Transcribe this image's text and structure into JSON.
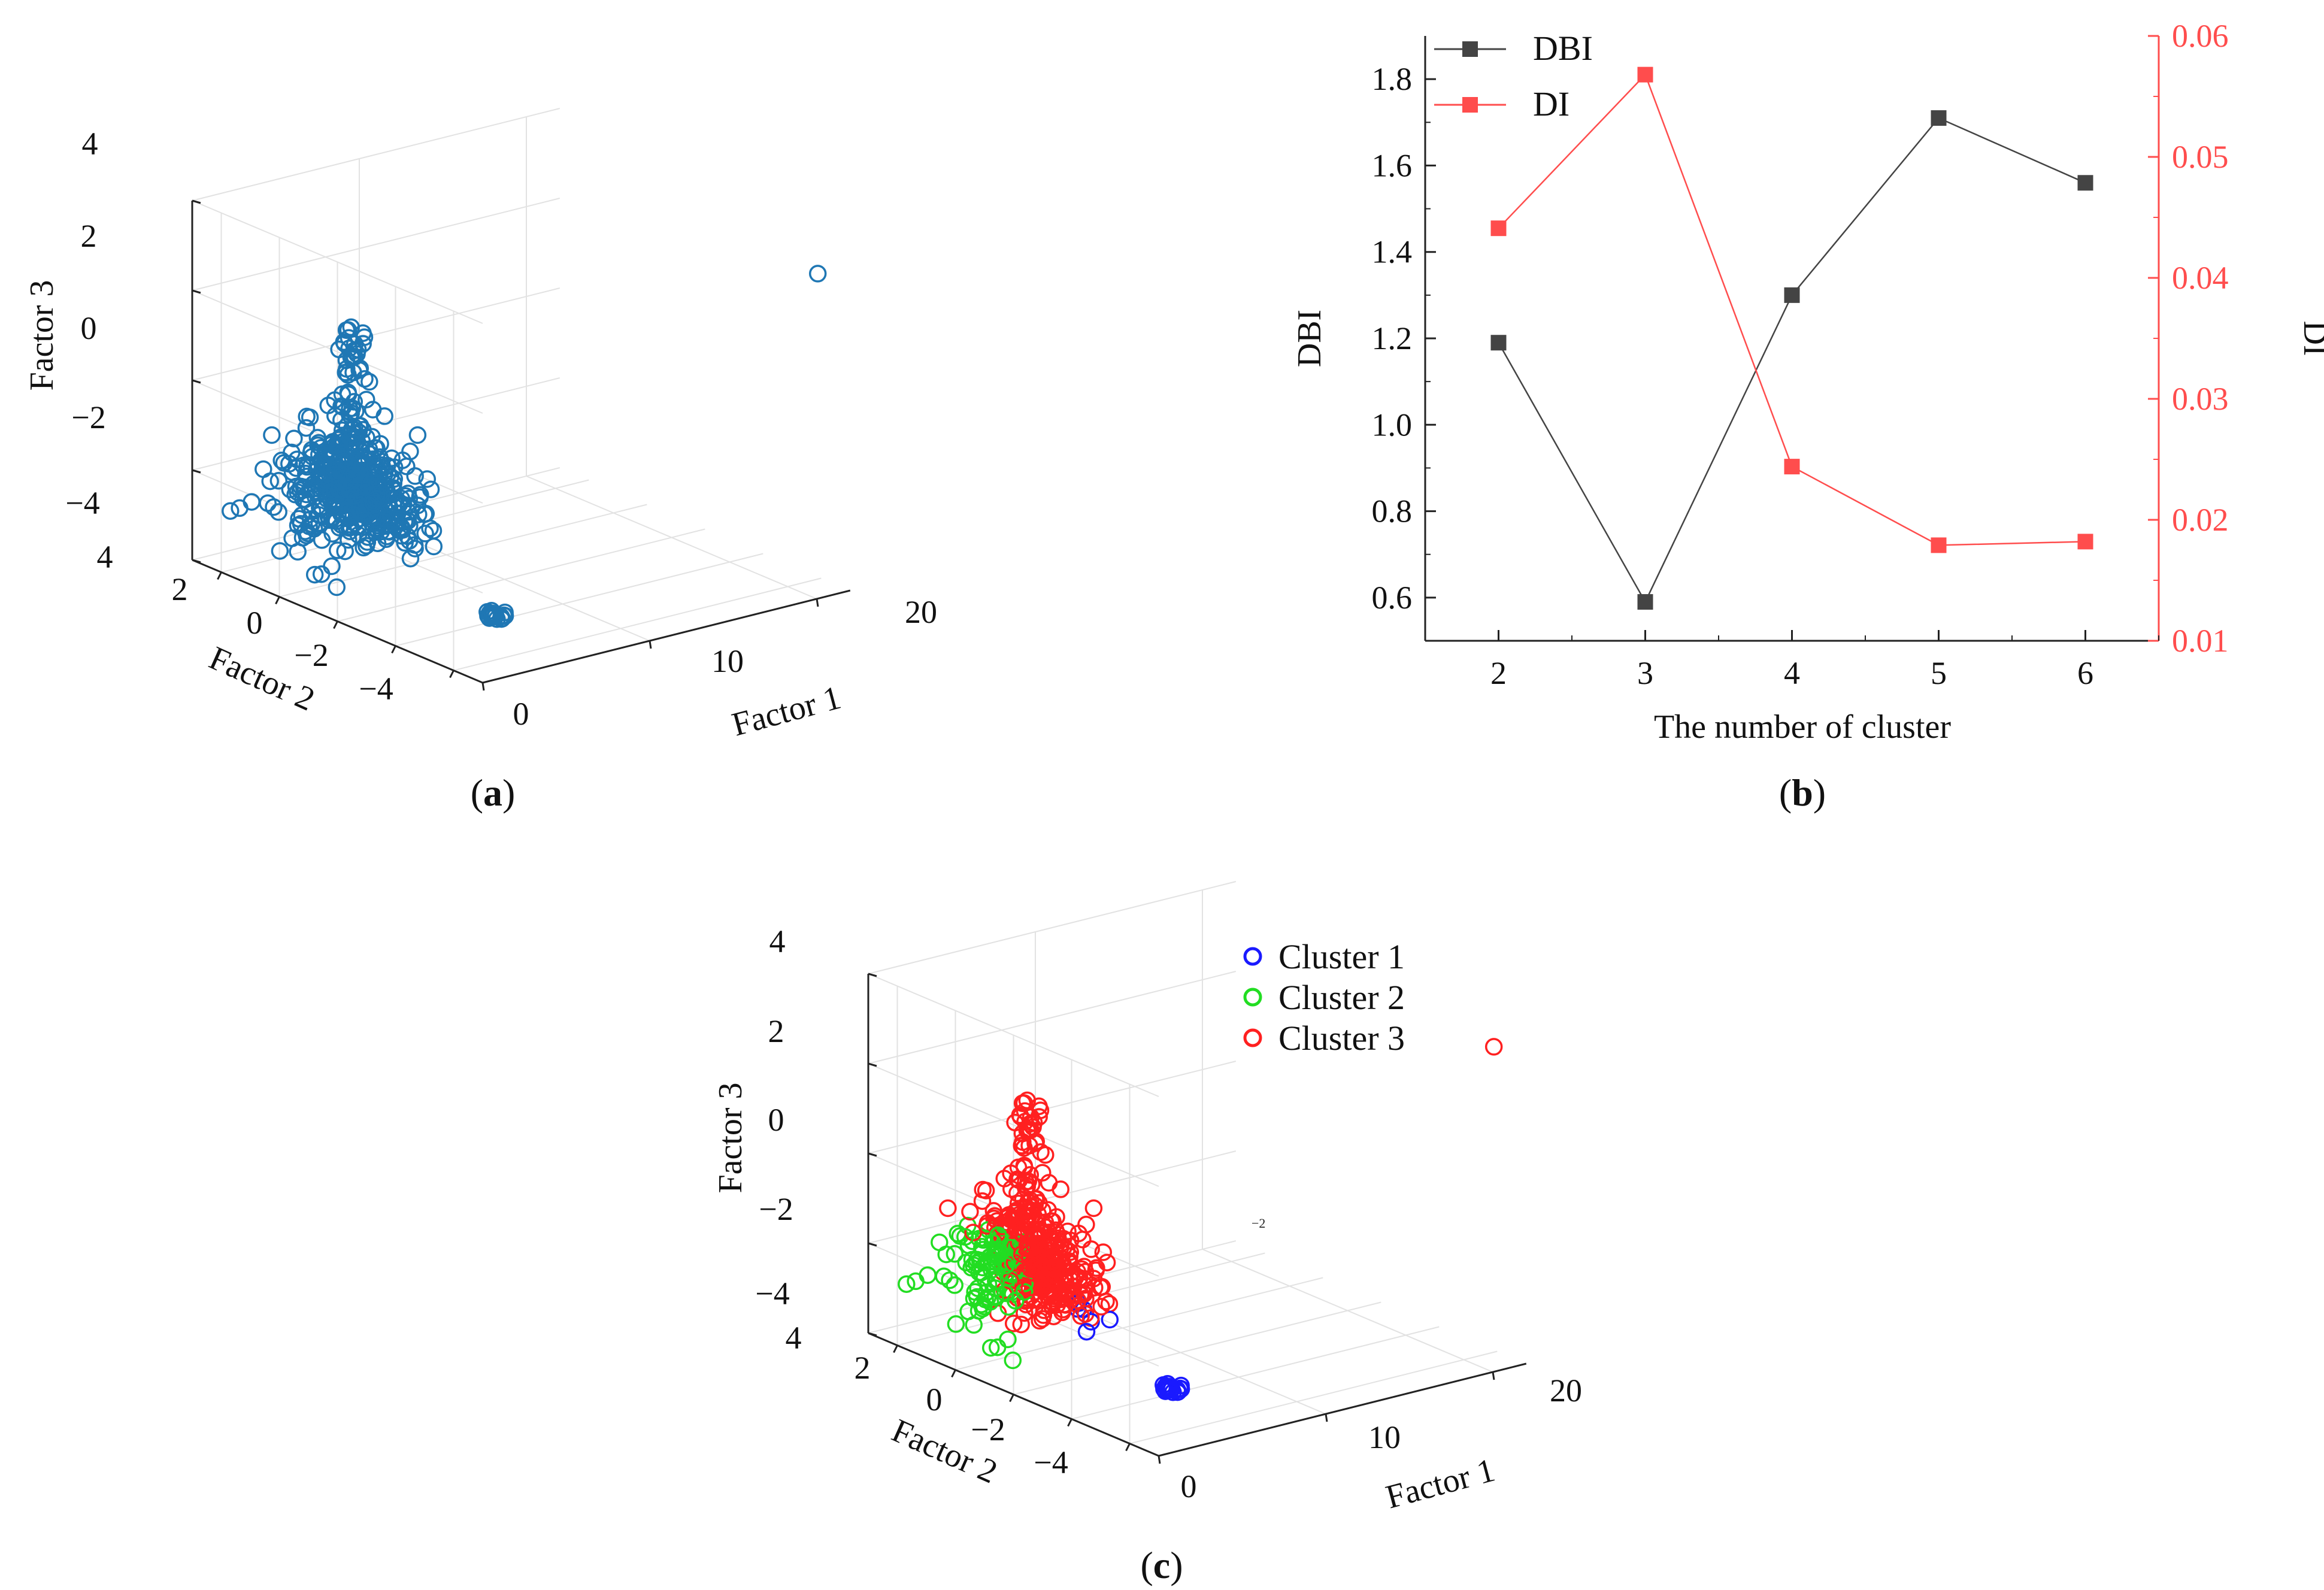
{
  "chart_data": [
    {
      "panel": "a",
      "type": "scatter",
      "dimensions": 3,
      "panel_label_letter": "a",
      "xlabel": "Factor 1",
      "ylabel": "Factor 2",
      "zlabel": "Factor 3",
      "xlim": [
        0,
        22
      ],
      "ylim": [
        -5,
        5
      ],
      "zlim": [
        -4,
        4
      ],
      "xticks": [
        "0",
        "10",
        "20"
      ],
      "yticks": [
        "4",
        "2",
        "0",
        "−2",
        "−4"
      ],
      "zticks": [
        "4",
        "2",
        "0",
        "−2",
        "−4"
      ],
      "series": [
        {
          "name": "points",
          "color": "#1f77b4",
          "marker": "circle-open",
          "main_cloud_center": [
            1.5,
            0.5,
            -1.5
          ],
          "tail_points": [
            [
              0.2,
              3.8,
              -2.6
            ],
            [
              0.4,
              3.5,
              -2.5
            ],
            [
              0.8,
              3.2,
              -2.3
            ],
            [
              1.0,
              2.5,
              -3.2
            ],
            [
              1.2,
              2.0,
              -3.0
            ]
          ],
          "compact_cluster_center": [
            3.5,
            -3.0,
            -3.5
          ],
          "outlier": [
            21.5,
            -4.0,
            2.8
          ]
        }
      ]
    },
    {
      "panel": "b",
      "type": "line",
      "panel_label_letter": "b",
      "xlabel": "The number of cluster",
      "ylabel": "DBI",
      "ylabel_right": "DI",
      "categories": [
        2,
        3,
        4,
        5,
        6
      ],
      "xticks": [
        "2",
        "3",
        "4",
        "5",
        "6"
      ],
      "yticks_left": [
        "0.6",
        "0.8",
        "1.0",
        "1.2",
        "1.4",
        "1.6",
        "1.8"
      ],
      "yticks_right": [
        "0.01",
        "0.02",
        "0.03",
        "0.04",
        "0.05",
        "0.06"
      ],
      "ylim_left": [
        0.5,
        1.9
      ],
      "ylim_right": [
        0.01,
        0.06
      ],
      "xlim": [
        1.5,
        6.5
      ],
      "legend_position": "top-left",
      "series": [
        {
          "name": "DBI",
          "axis": "left",
          "color": "#444444",
          "values": [
            1.19,
            0.59,
            1.3,
            1.71,
            1.56
          ]
        },
        {
          "name": "DI",
          "axis": "right",
          "color": "#ff4d4d",
          "values": [
            0.0441,
            0.0568,
            0.0244,
            0.0179,
            0.0182
          ]
        }
      ]
    },
    {
      "panel": "c",
      "type": "scatter",
      "dimensions": 3,
      "panel_label_letter": "c",
      "xlabel": "Factor 1",
      "ylabel": "Factor 2",
      "zlabel": "Factor 3",
      "xticks": [
        "0",
        "10",
        "20"
      ],
      "yticks": [
        "4",
        "2",
        "0",
        "−2",
        "−4"
      ],
      "zticks": [
        "4",
        "2",
        "0",
        "−2",
        "−4"
      ],
      "stray_tick": "−2",
      "legend_position": "top-right",
      "series": [
        {
          "name": "Cluster 1",
          "color": "#1a1aff",
          "center": [
            3.5,
            -3.0,
            -3.5
          ]
        },
        {
          "name": "Cluster 2",
          "color": "#22dd22",
          "center": [
            0.5,
            2.0,
            -2.0
          ]
        },
        {
          "name": "Cluster 3",
          "color": "#ff2020",
          "center": [
            1.8,
            -0.5,
            -0.5
          ],
          "outlier": [
            21.5,
            -4.0,
            2.8
          ]
        }
      ]
    }
  ]
}
